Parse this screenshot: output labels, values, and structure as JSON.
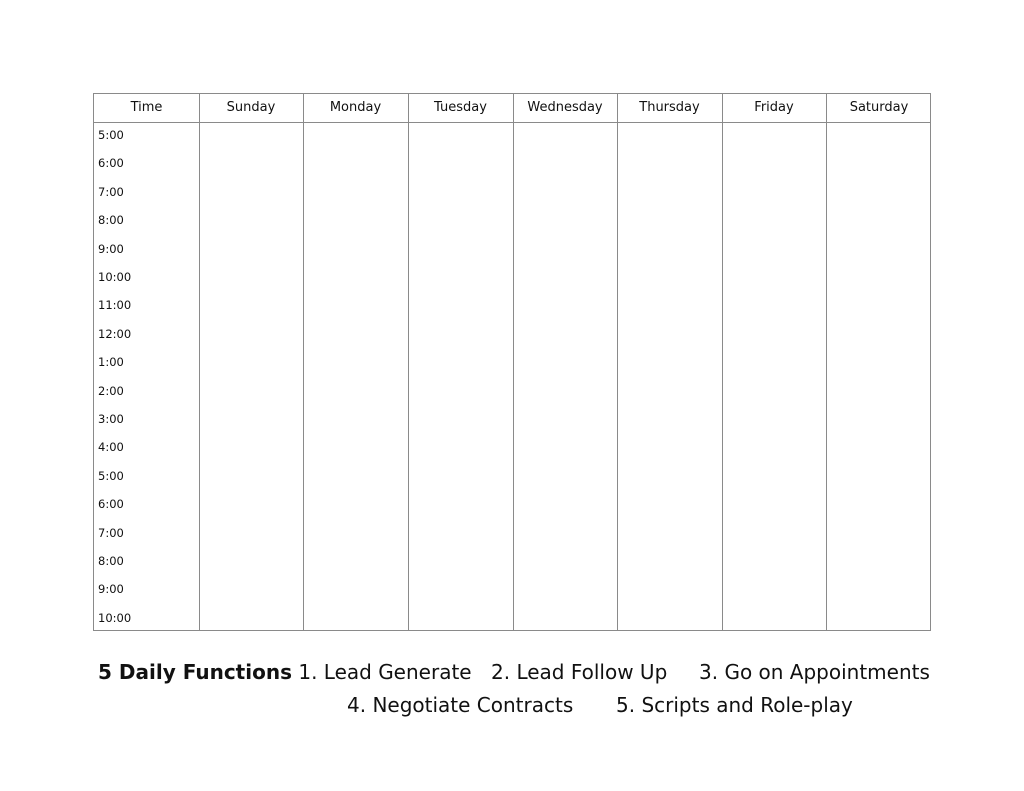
{
  "schedule": {
    "time_header": "Time",
    "days": [
      "Sunday",
      "Monday",
      "Tuesday",
      "Wednesday",
      "Thursday",
      "Friday",
      "Saturday"
    ],
    "times": [
      "5:00",
      "6:00",
      "7:00",
      "8:00",
      "9:00",
      "10:00",
      "11:00",
      "12:00",
      "1:00",
      "2:00",
      "3:00",
      "4:00",
      "5:00",
      "6:00",
      "7:00",
      "8:00",
      "9:00",
      "10:00"
    ]
  },
  "legend": {
    "title": "5 Daily Functions",
    "items": [
      "1. Lead Generate",
      "2. Lead Follow Up",
      "3. Go on Appointments",
      "4. Negotiate Contracts",
      "5. Scripts and Role-play"
    ]
  }
}
